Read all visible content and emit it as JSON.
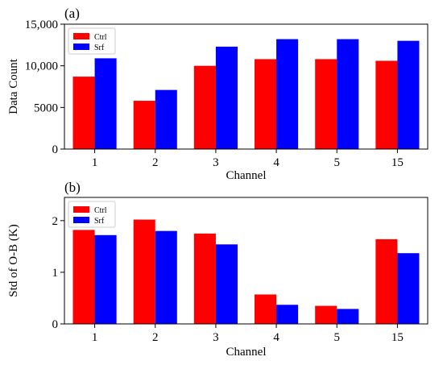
{
  "chart_data": [
    {
      "panel_label": "(a)",
      "type": "bar",
      "categories": [
        "1",
        "2",
        "3",
        "4",
        "5",
        "15"
      ],
      "series": [
        {
          "name": "Ctrl",
          "color": "#ff0000",
          "values": [
            8700,
            5800,
            10000,
            10800,
            10800,
            10600
          ]
        },
        {
          "name": "Srf",
          "color": "#0000ff",
          "values": [
            10900,
            7100,
            12300,
            13200,
            13200,
            13000
          ]
        }
      ],
      "xlabel": "Channel",
      "ylabel": "Data Count",
      "ylim": [
        0,
        15000
      ],
      "yticks": [
        0,
        5000,
        10000,
        15000
      ],
      "ytick_labels": [
        "0",
        "5000",
        "10,000",
        "15,000"
      ],
      "legend_position": "top-left",
      "grid": false
    },
    {
      "panel_label": "(b)",
      "type": "bar",
      "categories": [
        "1",
        "2",
        "3",
        "4",
        "5",
        "15"
      ],
      "series": [
        {
          "name": "Ctrl",
          "color": "#ff0000",
          "values": [
            1.82,
            2.02,
            1.75,
            0.57,
            0.35,
            1.64
          ]
        },
        {
          "name": "Srf",
          "color": "#0000ff",
          "values": [
            1.72,
            1.8,
            1.54,
            0.37,
            0.29,
            1.37
          ]
        }
      ],
      "xlabel": "Channel",
      "ylabel": "Std of O-B (K)",
      "ylim": [
        0,
        2.45
      ],
      "yticks": [
        0,
        1,
        2
      ],
      "ytick_labels": [
        "0",
        "1",
        "2"
      ],
      "legend_position": "top-left",
      "grid": false
    }
  ]
}
